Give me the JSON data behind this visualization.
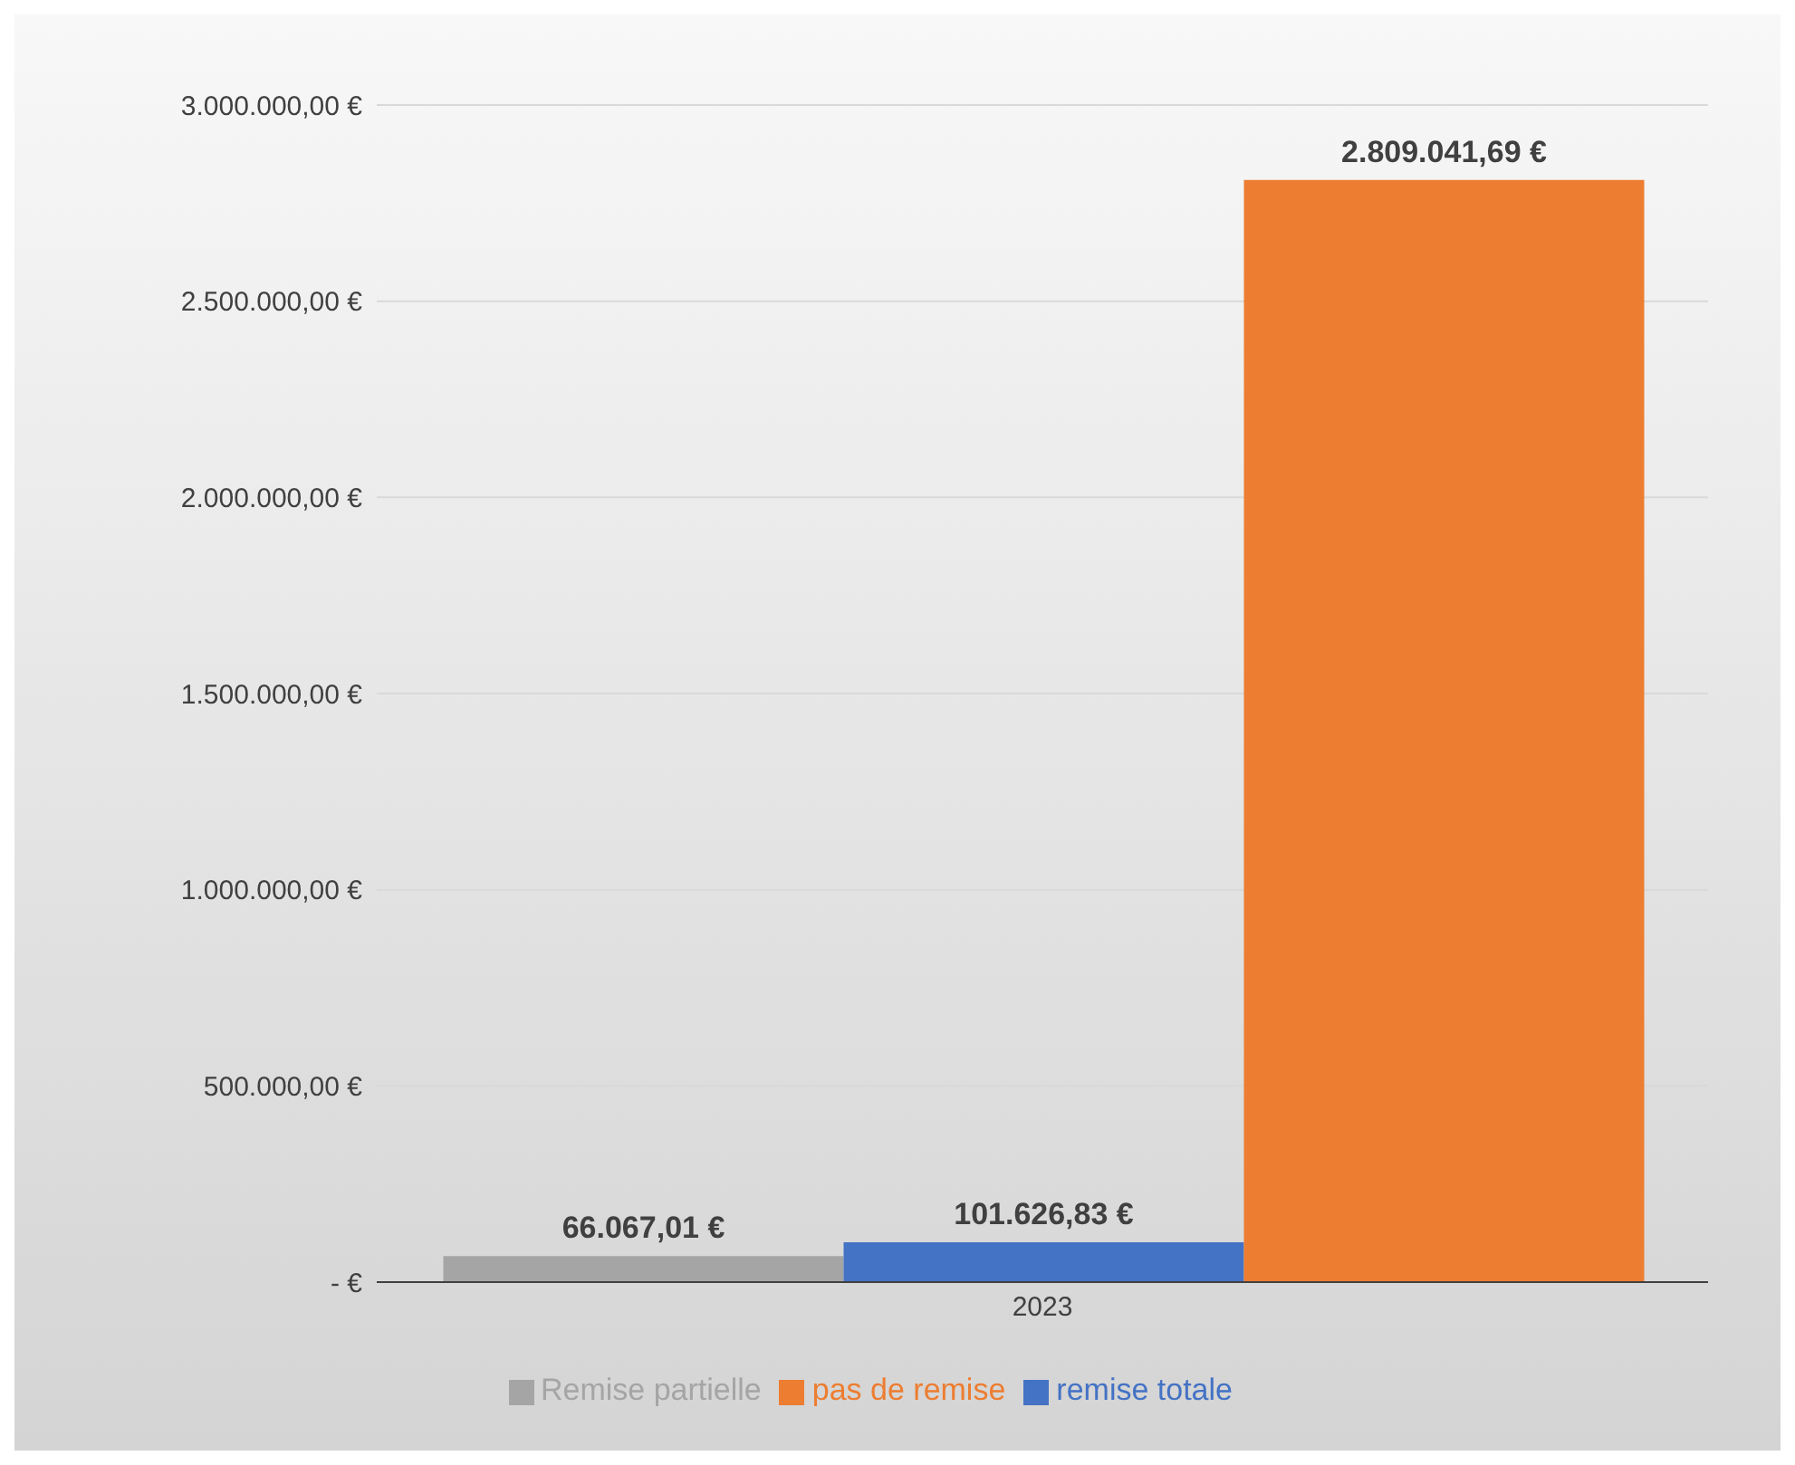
{
  "chart_data": {
    "type": "bar",
    "categories": [
      "2023"
    ],
    "series": [
      {
        "name": "Remise partielle",
        "color": "#a5a5a5",
        "values": [
          66067.01
        ],
        "value_labels": [
          "66.067,01 €"
        ]
      },
      {
        "name": "remise totale",
        "color": "#4472c4",
        "values": [
          101626.83
        ],
        "value_labels": [
          "101.626,83 €"
        ]
      },
      {
        "name": "pas de remise",
        "color": "#ed7d31",
        "values": [
          2809041.69
        ],
        "value_labels": [
          "2.809.041,69 €"
        ]
      }
    ],
    "ylim": [
      0,
      3000000
    ],
    "yticks": [
      {
        "value": 0,
        "label": "-  €"
      },
      {
        "value": 500000,
        "label": "500.000,00  €"
      },
      {
        "value": 1000000,
        "label": "1.000.000,00  €"
      },
      {
        "value": 1500000,
        "label": "1.500.000,00  €"
      },
      {
        "value": 2000000,
        "label": "2.000.000,00  €"
      },
      {
        "value": 2500000,
        "label": "2.500.000,00  €"
      },
      {
        "value": 3000000,
        "label": "3.000.000,00  €"
      }
    ],
    "grid": "y",
    "legend": "bottom"
  }
}
